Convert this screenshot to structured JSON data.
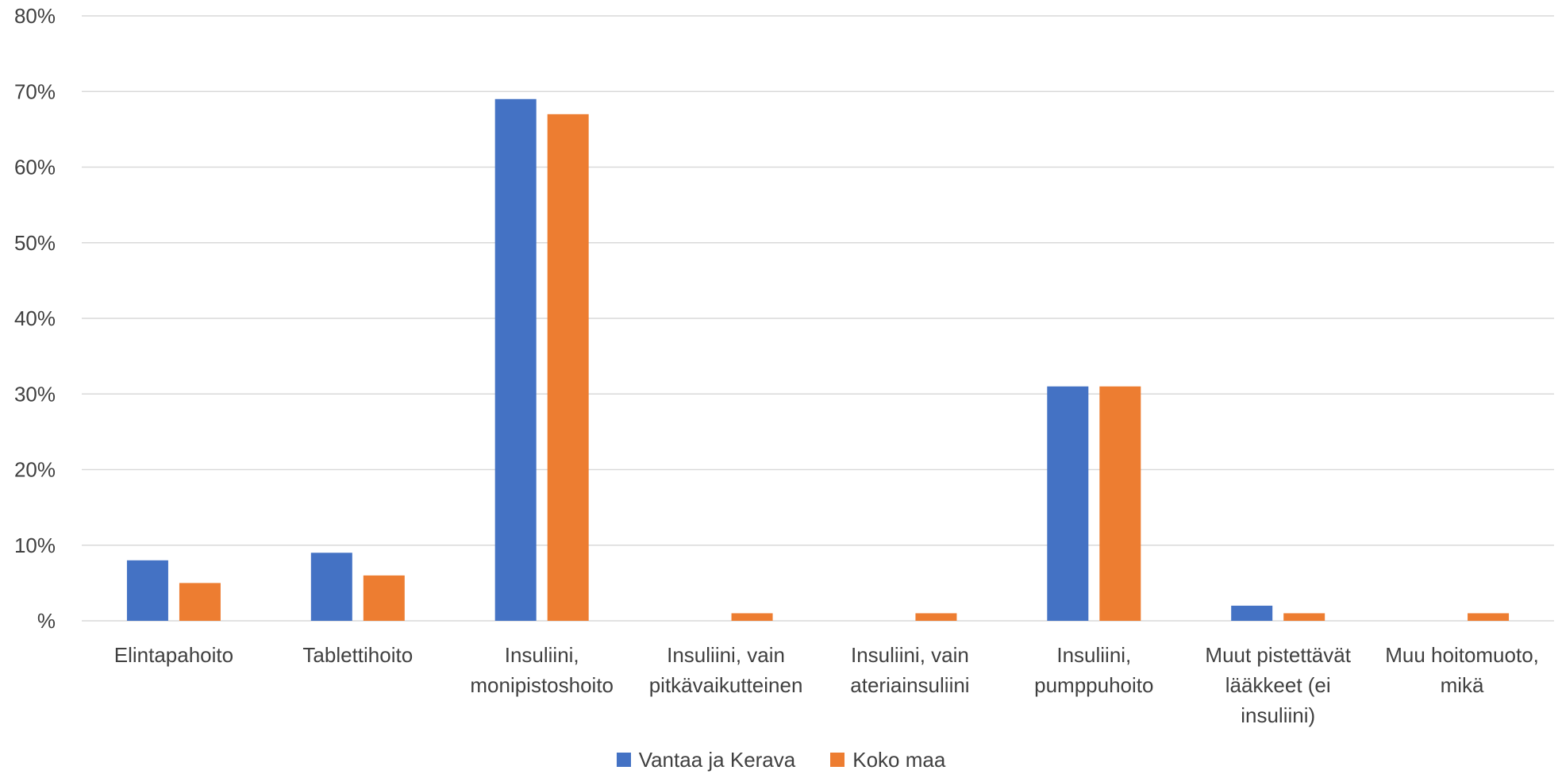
{
  "chart_data": {
    "type": "bar",
    "categories": [
      "Elintapahoito",
      "Tablettihoito",
      "Insuliini, monipistoshoito",
      "Insuliini, vain pitkävaikutteinen",
      "Insuliini, vain ateriainsuliini",
      "Insuliini, pumppuhoito",
      "Muut pistettävät lääkkeet (ei insuliini)",
      "Muu hoitomuoto, mikä"
    ],
    "category_lines": [
      [
        "Elintapahoito"
      ],
      [
        "Tablettihoito"
      ],
      [
        "Insuliini,",
        "monipistoshoito"
      ],
      [
        "Insuliini, vain",
        "pitkävaikutteinen"
      ],
      [
        "Insuliini, vain",
        "ateriainsuliini"
      ],
      [
        "Insuliini,",
        "pumppuhoito"
      ],
      [
        "Muut pistettävät",
        "lääkkeet (ei",
        "insuliini)"
      ],
      [
        "Muu hoitomuoto,",
        "mikä"
      ]
    ],
    "series": [
      {
        "name": "Vantaa ja Kerava",
        "color": "#4472C4",
        "values": [
          8,
          9,
          69,
          0,
          0,
          31,
          2,
          0
        ]
      },
      {
        "name": "Koko maa",
        "color": "#ED7D31",
        "values": [
          5,
          6,
          67,
          1,
          1,
          31,
          1,
          1
        ]
      }
    ],
    "ylim": [
      0,
      80
    ],
    "yticks": [
      0,
      10,
      20,
      30,
      40,
      50,
      60,
      70,
      80
    ],
    "ytick_labels": [
      "%",
      "10%",
      "20%",
      "30%",
      "40%",
      "50%",
      "60%",
      "70%",
      "80%"
    ],
    "title": "",
    "xlabel": "",
    "ylabel": "",
    "grid": true,
    "legend_position": "bottom"
  }
}
